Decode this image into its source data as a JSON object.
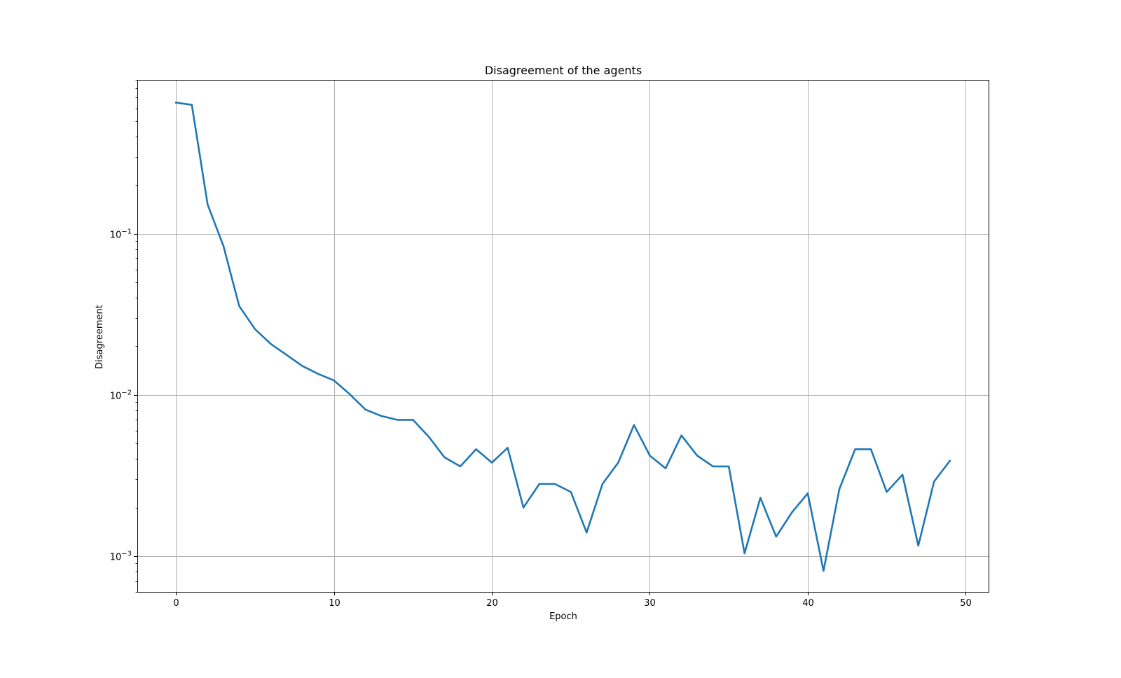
{
  "chart_data": {
    "type": "line",
    "title": "Disagreement of the agents",
    "xlabel": "Epoch",
    "ylabel": "Disagreement",
    "yscale": "log",
    "xlim": [
      -2.45,
      51.45
    ],
    "ylim": [
      0.0006,
      0.9
    ],
    "grid": true,
    "xticks": [
      {
        "value": 0,
        "label": "0"
      },
      {
        "value": 10,
        "label": "10"
      },
      {
        "value": 20,
        "label": "20"
      },
      {
        "value": 30,
        "label": "30"
      },
      {
        "value": 40,
        "label": "40"
      },
      {
        "value": 50,
        "label": "50"
      }
    ],
    "yticks": [
      {
        "value": 0.1,
        "base": "10",
        "exp": "−1"
      },
      {
        "value": 0.01,
        "base": "10",
        "exp": "−2"
      },
      {
        "value": 0.001,
        "base": "10",
        "exp": "−3"
      }
    ],
    "series": [
      {
        "color": "#1f77b4",
        "x": [
          0,
          1,
          2,
          3,
          4,
          5,
          6,
          7,
          8,
          9,
          10,
          11,
          12,
          13,
          14,
          15,
          16,
          17,
          18,
          19,
          20,
          21,
          22,
          23,
          24,
          25,
          26,
          27,
          28,
          29,
          30,
          31,
          32,
          33,
          34,
          35,
          36,
          37,
          38,
          39,
          40,
          41,
          42,
          43,
          44,
          45,
          46,
          47,
          48,
          49
        ],
        "values": [
          0.65,
          0.63,
          0.152,
          0.084,
          0.0356,
          0.0256,
          0.0207,
          0.0177,
          0.0151,
          0.0135,
          0.0123,
          0.0101,
          0.0081,
          0.0074,
          0.007,
          0.007,
          0.0055,
          0.0041,
          0.0036,
          0.0046,
          0.0038,
          0.0047,
          0.002,
          0.0028,
          0.0028,
          0.0025,
          0.0014,
          0.0028,
          0.0038,
          0.0065,
          0.0042,
          0.0035,
          0.0056,
          0.0042,
          0.0036,
          0.0036,
          0.00104,
          0.0023,
          0.00132,
          0.00187,
          0.00245,
          0.00081,
          0.0026,
          0.0046,
          0.0046,
          0.0025,
          0.0032,
          0.00116,
          0.0029,
          0.0039
        ]
      }
    ]
  }
}
